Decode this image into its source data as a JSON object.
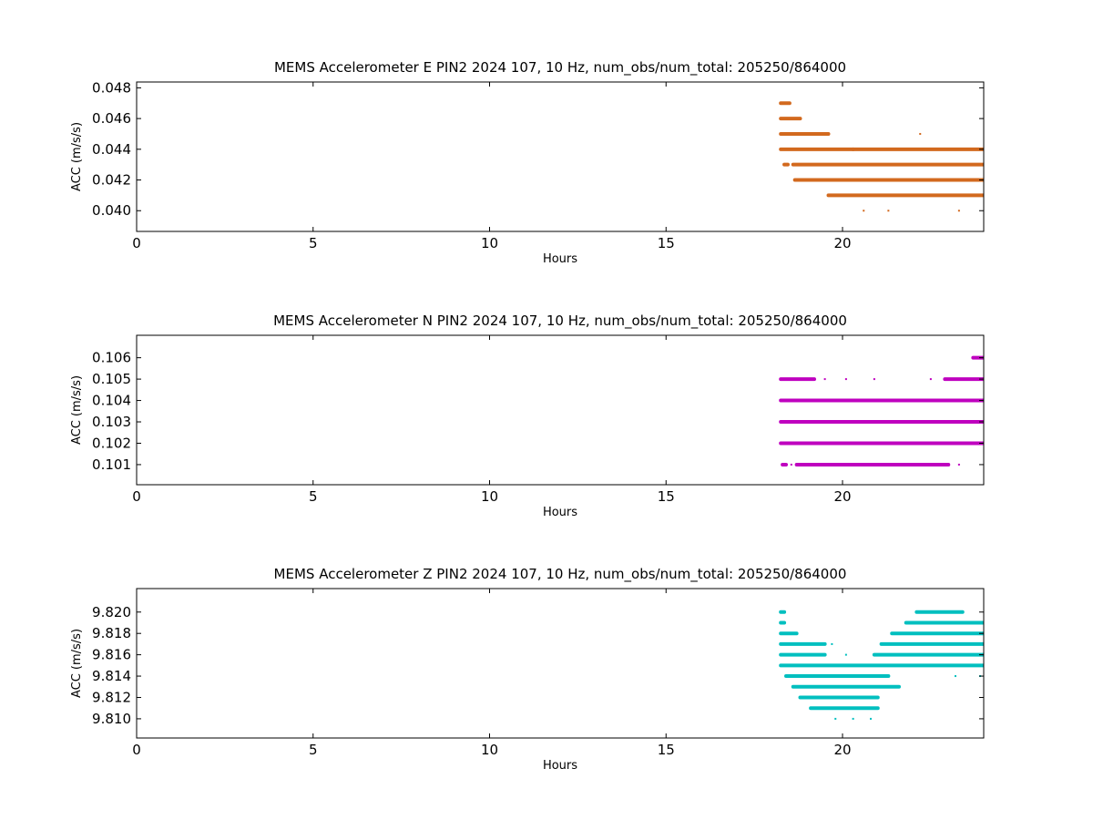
{
  "chart_data": [
    {
      "type": "scatter",
      "title": "MEMS Accelerometer E PIN2 2024 107, 10 Hz, num_obs/num_total: 205250/864000",
      "xlabel": "Hours",
      "ylabel": "ACC (m/s/s)",
      "xlim": [
        0,
        24
      ],
      "ylim": [
        0.03865,
        0.04838
      ],
      "xticks": [
        0,
        5,
        10,
        15,
        20
      ],
      "yticks": [
        0.04,
        0.042,
        0.044,
        0.046,
        0.048
      ],
      "ytick_labels": [
        "0.040",
        "0.042",
        "0.044",
        "0.046",
        "0.048"
      ],
      "grid": false,
      "color": "#d2691e",
      "levels": [
        {
          "y": 0.047,
          "segments": [
            [
              18.25,
              18.5
            ]
          ]
        },
        {
          "y": 0.046,
          "segments": [
            [
              18.25,
              18.8
            ]
          ]
        },
        {
          "y": 0.045,
          "segments": [
            [
              18.25,
              19.6
            ]
          ]
        },
        {
          "y": 0.044,
          "segments": [
            [
              18.25,
              20.3
            ],
            [
              20.3,
              24.0
            ]
          ]
        },
        {
          "y": 0.043,
          "segments": [
            [
              18.35,
              18.45
            ],
            [
              18.6,
              24.0
            ]
          ]
        },
        {
          "y": 0.042,
          "segments": [
            [
              18.65,
              24.0
            ]
          ]
        },
        {
          "y": 0.041,
          "segments": [
            [
              19.6,
              24.0
            ]
          ]
        }
      ],
      "points": [
        [
          22.2,
          0.045
        ],
        [
          20.6,
          0.04
        ],
        [
          21.3,
          0.04
        ],
        [
          23.3,
          0.04
        ]
      ]
    },
    {
      "type": "scatter",
      "title": "MEMS Accelerometer N PIN2 2024 107, 10 Hz, num_obs/num_total: 205250/864000",
      "xlabel": "Hours",
      "ylabel": "ACC (m/s/s)",
      "xlim": [
        0,
        24
      ],
      "ylim": [
        0.10006,
        0.10705
      ],
      "xticks": [
        0,
        5,
        10,
        15,
        20
      ],
      "yticks": [
        0.101,
        0.102,
        0.103,
        0.104,
        0.105,
        0.106
      ],
      "ytick_labels": [
        "0.101",
        "0.102",
        "0.103",
        "0.104",
        "0.105",
        "0.106"
      ],
      "grid": false,
      "color": "#bf00bf",
      "levels": [
        {
          "y": 0.106,
          "segments": [
            [
              23.7,
              24.0
            ]
          ]
        },
        {
          "y": 0.105,
          "segments": [
            [
              18.25,
              19.2
            ],
            [
              22.9,
              24.0
            ]
          ]
        },
        {
          "y": 0.104,
          "segments": [
            [
              18.25,
              24.0
            ]
          ]
        },
        {
          "y": 0.103,
          "segments": [
            [
              18.25,
              24.0
            ]
          ]
        },
        {
          "y": 0.102,
          "segments": [
            [
              18.25,
              24.0
            ]
          ]
        },
        {
          "y": 0.101,
          "segments": [
            [
              18.3,
              18.4
            ],
            [
              18.7,
              23.0
            ]
          ]
        }
      ],
      "points": [
        [
          19.5,
          0.105
        ],
        [
          20.1,
          0.105
        ],
        [
          20.9,
          0.105
        ],
        [
          22.5,
          0.105
        ],
        [
          23.3,
          0.101
        ],
        [
          18.55,
          0.101
        ]
      ]
    },
    {
      "type": "scatter",
      "title": "MEMS Accelerometer Z PIN2 2024 107, 10 Hz, num_obs/num_total: 205250/864000",
      "xlabel": "Hours",
      "ylabel": "ACC (m/s/s)",
      "xlim": [
        0,
        24
      ],
      "ylim": [
        9.8082,
        9.8222
      ],
      "xticks": [
        0,
        5,
        10,
        15,
        20
      ],
      "yticks": [
        9.81,
        9.812,
        9.814,
        9.816,
        9.818,
        9.82
      ],
      "ytick_labels": [
        "9.810",
        "9.812",
        "9.814",
        "9.816",
        "9.818",
        "9.820"
      ],
      "grid": false,
      "color": "#00bfbf",
      "levels": [
        {
          "y": 9.82,
          "segments": [
            [
              18.25,
              18.35
            ],
            [
              22.1,
              23.4
            ]
          ]
        },
        {
          "y": 9.819,
          "segments": [
            [
              18.25,
              18.35
            ],
            [
              21.8,
              24.0
            ]
          ]
        },
        {
          "y": 9.818,
          "segments": [
            [
              18.25,
              18.7
            ],
            [
              21.4,
              24.0
            ]
          ]
        },
        {
          "y": 9.817,
          "segments": [
            [
              18.25,
              19.5
            ],
            [
              21.1,
              24.0
            ]
          ]
        },
        {
          "y": 9.816,
          "segments": [
            [
              18.25,
              19.5
            ],
            [
              20.9,
              24.0
            ]
          ]
        },
        {
          "y": 9.815,
          "segments": [
            [
              18.25,
              24.0
            ]
          ]
        },
        {
          "y": 9.814,
          "segments": [
            [
              18.4,
              21.3
            ]
          ]
        },
        {
          "y": 9.813,
          "segments": [
            [
              18.6,
              21.6
            ]
          ]
        },
        {
          "y": 9.812,
          "segments": [
            [
              18.8,
              21.0
            ]
          ]
        },
        {
          "y": 9.811,
          "segments": [
            [
              19.1,
              21.0
            ]
          ]
        }
      ],
      "points": [
        [
          19.8,
          9.81
        ],
        [
          20.3,
          9.81
        ],
        [
          20.8,
          9.81
        ],
        [
          19.7,
          9.817
        ],
        [
          20.1,
          9.816
        ],
        [
          23.2,
          9.814
        ],
        [
          23.9,
          9.814
        ]
      ]
    }
  ]
}
